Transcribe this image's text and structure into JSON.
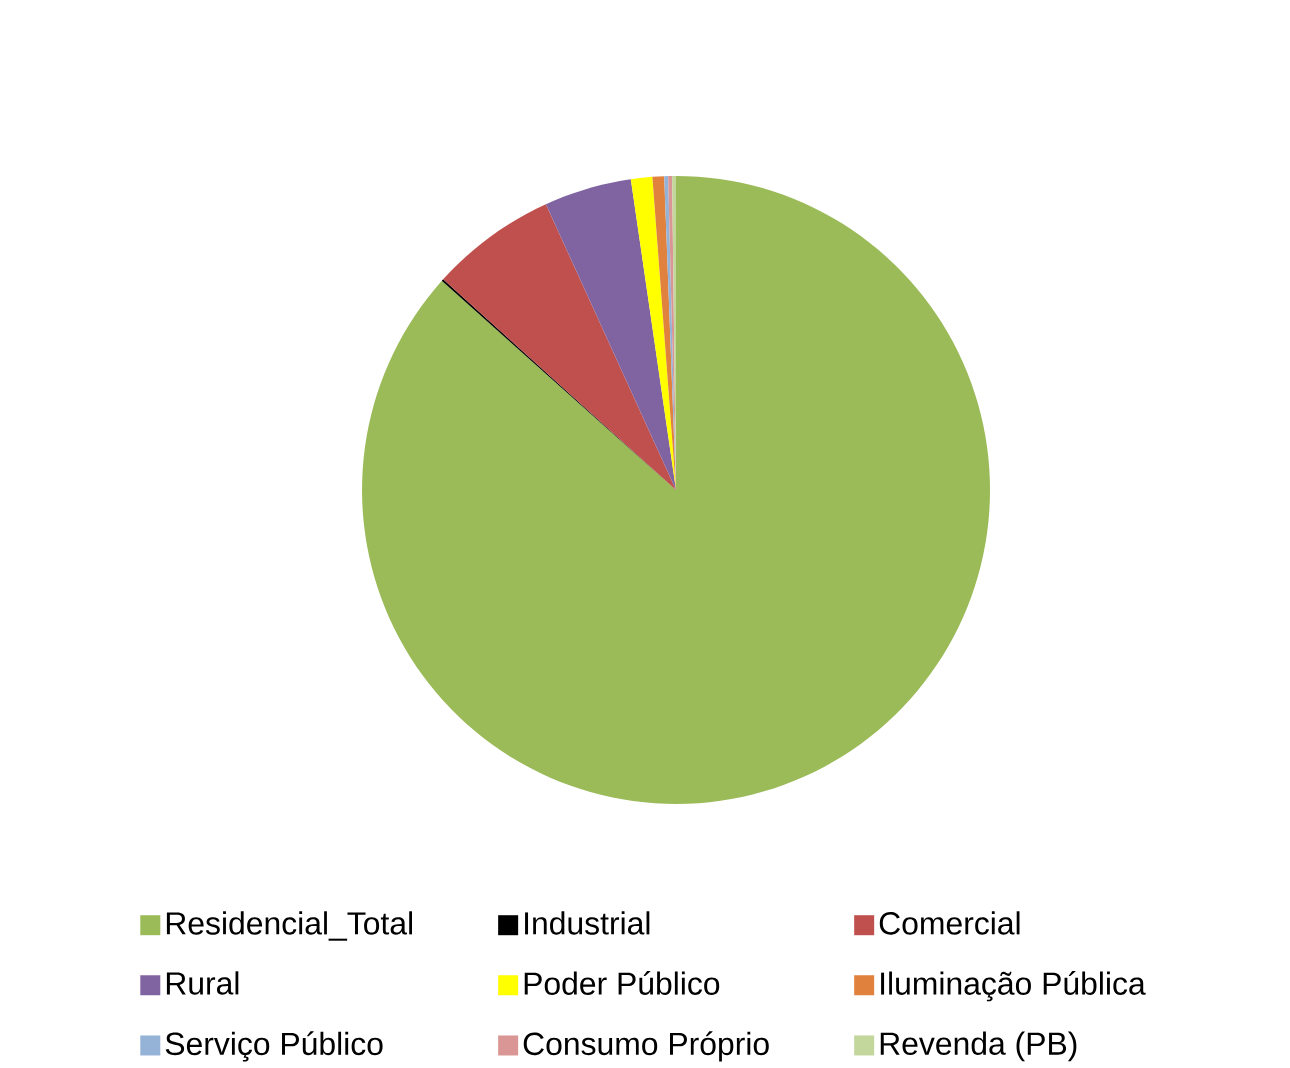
{
  "chart_data": {
    "type": "pie",
    "categories": [
      "Residencial_Total",
      "Industrial",
      "Comercial",
      "Rural",
      "Poder Público",
      "Iluminação Pública",
      "Serviço Público",
      "Consumo Próprio",
      "Revenda (PB)"
    ],
    "values": [
      86.6,
      0.1,
      6.5,
      4.5,
      1.1,
      0.6,
      0.2,
      0.2,
      0.2
    ],
    "colors": [
      "#9bbb59",
      "#000000",
      "#c0504d",
      "#8064a2",
      "#ffff00",
      "#e0823d",
      "#95b3d7",
      "#d99694",
      "#c3d69b"
    ],
    "legend": "bottom"
  }
}
